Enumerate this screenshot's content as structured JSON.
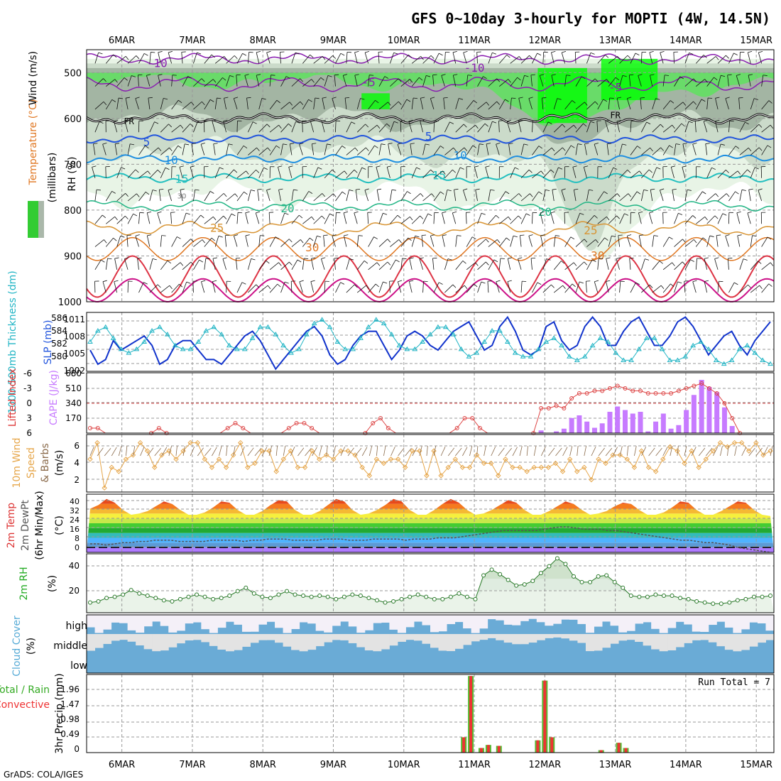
{
  "title": "GFS 0~10day 3-hourly for MOPTI (4W, 14.5N)",
  "credit": "GrADS: COLA/IGES",
  "run_total": "Run Total = 7",
  "chart_data": [
    {
      "type": "contour",
      "panel": "upper-air",
      "date_labels": [
        "6MAR",
        "7MAR",
        "8MAR",
        "9MAR",
        "10MAR",
        "11MAR",
        "12MAR",
        "13MAR",
        "14MAR",
        "15MAR"
      ],
      "ylabels": [
        "RH (%)",
        "Temperature (°C)",
        "Wind (m/s)",
        "(millibars)"
      ],
      "ylim": [
        1000,
        450
      ],
      "pressure_ticks": [
        "500",
        "600",
        "700",
        "800",
        "900",
        "1000"
      ],
      "isotherm_labels": [
        {
          "text": "-10",
          "t": 0.5,
          "p": 480
        },
        {
          "text": "-10",
          "t": 5.0,
          "p": 490
        },
        {
          "text": "-5",
          "t": 3.5,
          "p": 522
        },
        {
          "text": "-5",
          "t": 7.0,
          "p": 533
        },
        {
          "text": "FR",
          "t": 0.1,
          "p": 605
        },
        {
          "text": "FR",
          "t": 7.0,
          "p": 592
        },
        {
          "text": "5",
          "t": 0.35,
          "p": 652
        },
        {
          "text": "5",
          "t": 4.35,
          "p": 640
        },
        {
          "text": "10",
          "t": 0.7,
          "p": 692
        },
        {
          "text": "10",
          "t": 4.8,
          "p": 682
        },
        {
          "text": "15",
          "t": 0.85,
          "p": 733
        },
        {
          "text": "15",
          "t": 4.5,
          "p": 725
        },
        {
          "text": "20",
          "t": 2.35,
          "p": 797
        },
        {
          "text": "20",
          "t": 6.0,
          "p": 805
        },
        {
          "text": "25",
          "t": 1.35,
          "p": 840
        },
        {
          "text": "25",
          "t": 6.65,
          "p": 845
        },
        {
          "text": "30",
          "t": 2.7,
          "p": 882
        },
        {
          "text": "30",
          "t": 6.75,
          "p": 900
        }
      ],
      "rh_labels": [
        {
          "text": "50",
          "t": 4.05,
          "p": 518
        },
        {
          "text": "30",
          "t": 0.85,
          "p": 768
        }
      ],
      "colors": {
        "rh_light": "#eaf5e8",
        "rh_mid": "#cfe6cc",
        "rh_grey": "#b8c4b8",
        "rh_green": "#66dd66",
        "rh_bright": "#00ff00"
      }
    },
    {
      "type": "line",
      "panel": "thickness-slp",
      "ylabel_left": "1000-500mb Thickness (dm)",
      "ylabel_right": "SLP (mb)",
      "left_ticks": [
        "586",
        "584",
        "582",
        "580"
      ],
      "right_ticks": [
        "1011",
        "1008",
        "1005",
        "1002"
      ],
      "series": [
        {
          "name": "SLP (mb)",
          "color": "#1133cc",
          "values": [
            1005,
            1002,
            1003,
            1007,
            1005,
            1006,
            1007,
            1008,
            1006,
            1002,
            1003,
            1006,
            1007,
            1007,
            1005,
            1003,
            1003,
            1002,
            1004,
            1006,
            1008,
            1009,
            1007,
            1004,
            1001,
            1003,
            1005,
            1007,
            1009,
            1010,
            1008,
            1004,
            1002,
            1003,
            1006,
            1008,
            1009,
            1009,
            1006,
            1003,
            1005,
            1008,
            1009,
            1008,
            1006,
            1005,
            1007,
            1009,
            1010,
            1011,
            1008,
            1005,
            1006,
            1010,
            1012,
            1009,
            1005,
            1004,
            1005,
            1010,
            1011,
            1007,
            1005,
            1006,
            1010,
            1012,
            1010,
            1006,
            1006,
            1009,
            1011,
            1012,
            1009,
            1006,
            1006,
            1008,
            1011,
            1012,
            1010,
            1007,
            1004,
            1006,
            1008,
            1009,
            1006,
            1004,
            1007,
            1009,
            1011
          ]
        },
        {
          "name": "Thickness (dm)",
          "color": "#22b5c5",
          "values": [
            583,
            584.5,
            585,
            583.5,
            582,
            581.5,
            582,
            583,
            584.5,
            585,
            584,
            582.5,
            582,
            582,
            583,
            584.5,
            585,
            584,
            582.5,
            582,
            582,
            583.5,
            585,
            585,
            584,
            582.5,
            581.5,
            582,
            584,
            585.5,
            586,
            585,
            583,
            582,
            582,
            583.5,
            585,
            586,
            585.5,
            584,
            582.5,
            582,
            582,
            583,
            584,
            585,
            585,
            584,
            582,
            581,
            581.5,
            583,
            584.5,
            584.5,
            583,
            581.5,
            581,
            581,
            582,
            583,
            583.5,
            582.5,
            581,
            580.5,
            581,
            582.5,
            583.5,
            583,
            581.5,
            580.5,
            580.5,
            582,
            583.5,
            583.5,
            582,
            580.5,
            580.5,
            581,
            582.5,
            583,
            582,
            580.5,
            580,
            580.5,
            582,
            582.5,
            581.5,
            580.5,
            580
          ]
        }
      ]
    },
    {
      "type": "bar",
      "panel": "cape-li",
      "ylabel_left": "Lifted Index",
      "ylabel_right": "CAPE (J/kg)",
      "left_ticks": [
        "-6",
        "-3",
        "0",
        "3",
        "6"
      ],
      "right_ticks": [
        "680",
        "510",
        "340",
        "170"
      ],
      "series": [
        {
          "name": "CAPE (J/kg)",
          "color": "#c77bff",
          "values": [
            0,
            0,
            0,
            0,
            0,
            0,
            0,
            0,
            0,
            0,
            0,
            0,
            0,
            0,
            0,
            0,
            0,
            0,
            0,
            0,
            0,
            0,
            0,
            0,
            0,
            0,
            0,
            0,
            0,
            0,
            0,
            0,
            0,
            0,
            0,
            0,
            0,
            0,
            0,
            0,
            0,
            0,
            0,
            0,
            0,
            0,
            0,
            0,
            0,
            0,
            0,
            0,
            0,
            0,
            0,
            0,
            0,
            0,
            0,
            30,
            0,
            20,
            50,
            170,
            200,
            130,
            60,
            110,
            240,
            300,
            260,
            220,
            240,
            20,
            130,
            220,
            50,
            90,
            260,
            430,
            600,
            520,
            460,
            290,
            80,
            0,
            0,
            0,
            0,
            0
          ]
        },
        {
          "name": "Lifted Index",
          "color": "#dd4444",
          "values": [
            5,
            5,
            7,
            7,
            7,
            7,
            7,
            7,
            6,
            5,
            6,
            7,
            7,
            7,
            7,
            7,
            7,
            7,
            5,
            4,
            5,
            7,
            7,
            7,
            7,
            7,
            5,
            4,
            4,
            5,
            7,
            7,
            7,
            7,
            7,
            7,
            6,
            4,
            3,
            5,
            7,
            7,
            7,
            7,
            7,
            7,
            7,
            7,
            5,
            3,
            3,
            5,
            7,
            7,
            7,
            7,
            7,
            7,
            6,
            1,
            1,
            0.5,
            1,
            -1,
            -2,
            -2,
            -2.5,
            -2.5,
            -3,
            -3.5,
            -3,
            -2.5,
            -2.5,
            -2,
            -2,
            -2,
            -2,
            -2.5,
            -3,
            -3.5,
            -4,
            -3,
            -2,
            0,
            3,
            6,
            7,
            7,
            7,
            7
          ]
        }
      ]
    },
    {
      "type": "line",
      "panel": "wind10m",
      "ylabel": "10m Wind Speed & Barbs (m/s)",
      "left_ticks": [
        "6",
        "4",
        "2"
      ],
      "series": [
        {
          "name": "Speed",
          "color": "#e6a64a",
          "values": [
            4,
            6,
            0.5,
            3,
            2.5,
            4,
            4.5,
            6,
            5,
            3,
            4.5,
            5,
            4,
            5,
            6,
            6,
            4,
            3,
            4,
            3,
            4.5,
            6,
            3,
            3.5,
            5,
            5,
            2.5,
            4,
            5,
            3,
            3,
            5,
            4,
            4.5,
            4,
            5,
            5,
            4.5,
            3,
            2,
            4,
            3.5,
            4,
            4,
            3,
            5,
            5,
            2,
            5,
            2,
            3,
            4,
            3,
            3,
            4.5,
            3.5,
            3.5,
            2,
            4,
            3,
            3,
            2.5,
            3,
            3,
            3,
            3.5,
            2.5,
            4,
            2.5,
            3,
            1.5,
            4,
            3.5,
            4.5,
            4.5,
            4,
            3,
            5,
            3,
            2.5,
            4,
            5.5,
            5,
            3.5,
            5,
            3,
            4,
            5,
            6,
            5.5,
            6,
            6,
            5,
            6,
            4.5,
            5
          ]
        }
      ]
    },
    {
      "type": "area",
      "panel": "temperature",
      "ylabel": "2m Temp 2m DewPt (6hr Min/Max) (°C)",
      "left_ticks": [
        "40",
        "32",
        "24",
        "16",
        "8",
        "0"
      ],
      "series": [
        {
          "name": "Temp",
          "values": [
            32,
            35,
            40,
            37,
            31,
            27,
            28,
            30,
            34,
            38,
            36,
            31,
            27,
            27,
            29,
            33,
            38,
            37,
            31,
            27,
            27,
            30,
            35,
            39,
            38,
            31,
            27,
            27,
            30,
            35,
            40,
            38,
            31,
            27,
            28,
            31,
            35,
            40,
            38,
            31,
            27,
            27,
            31,
            36,
            40,
            37,
            31,
            27,
            28,
            31,
            35,
            39,
            37,
            31,
            27,
            27,
            30,
            34,
            38,
            36,
            31,
            27,
            28,
            30,
            34,
            37,
            36,
            31,
            27,
            27,
            29,
            33,
            38,
            37,
            31,
            27,
            27,
            30,
            34,
            38,
            37,
            31,
            27,
            26
          ]
        },
        {
          "name": "DewPt",
          "values": [
            3,
            3,
            2,
            3,
            4,
            4,
            5,
            5,
            6,
            6,
            6,
            5,
            5,
            5,
            5,
            6,
            6,
            6,
            6,
            5,
            6,
            6,
            7,
            7,
            7,
            6,
            6,
            6,
            6,
            7,
            7,
            7,
            6,
            6,
            6,
            7,
            7,
            7,
            7,
            6,
            7,
            7,
            7,
            8,
            8,
            8,
            9,
            10,
            11,
            12,
            13,
            14,
            14,
            14,
            14,
            14,
            15,
            16,
            17,
            17,
            16,
            15,
            15,
            15,
            14,
            14,
            13,
            12,
            11,
            10,
            9,
            8,
            7,
            6,
            6,
            5,
            4,
            4,
            3,
            2,
            0,
            -1,
            -2,
            -3,
            -4
          ]
        }
      ]
    },
    {
      "type": "area",
      "panel": "rh2m",
      "ylabel": "2m RH (%)",
      "left_ticks": [
        "40",
        "20"
      ],
      "series": [
        {
          "name": "2m RH",
          "values": [
            9,
            10,
            13,
            14,
            16,
            20,
            17,
            15,
            13,
            11,
            10,
            12,
            14,
            16,
            14,
            12,
            13,
            15,
            19,
            22,
            17,
            14,
            13,
            16,
            19,
            16,
            15,
            14,
            15,
            14,
            12,
            14,
            16,
            15,
            13,
            11,
            9,
            10,
            12,
            14,
            16,
            14,
            12,
            12,
            14,
            17,
            14,
            12,
            33,
            38,
            34,
            29,
            24,
            25,
            28,
            35,
            41,
            48,
            43,
            32,
            27,
            27,
            32,
            33,
            27,
            22,
            15,
            14,
            14,
            16,
            15,
            15,
            13,
            12,
            10,
            9,
            8,
            8,
            9,
            11,
            12,
            14,
            14,
            15
          ]
        }
      ]
    },
    {
      "type": "bar",
      "panel": "cloud-cover",
      "ylabel": "Cloud Cover (%)",
      "ylabels_levels": [
        "high",
        "middle",
        "low"
      ],
      "colors": {
        "cloud": "#6aabd6",
        "clear_high": "#f4f0f8",
        "clear_mid": "#e3e3e3",
        "clear_low": "#e3e3e3"
      }
    },
    {
      "type": "bar",
      "panel": "precip",
      "ylabel": "3hr Precip (mm)",
      "legend": [
        "Total / Rain",
        "Convective"
      ],
      "left_ticks": [
        "1.96",
        "1.47",
        "0.98",
        "0.49",
        "0"
      ],
      "series": [
        {
          "name": "Total",
          "color": "#55bb33",
          "values": [
            0.5,
            2.5,
            0.15,
            0.25,
            0.22,
            0.4,
            2.35,
            0.5,
            0.08,
            0.32,
            0.15
          ]
        },
        {
          "name": "Convective",
          "color": "#ee3333",
          "values": [
            0.5,
            2.5,
            0.15,
            0.25,
            0.22,
            0.4,
            2.35,
            0.5,
            0.08,
            0.32,
            0.15
          ]
        }
      ],
      "precip_times": [
        4.85,
        4.95,
        5.1,
        5.2,
        5.35,
        5.9,
        6.0,
        6.1,
        6.8,
        7.05,
        7.15
      ]
    }
  ]
}
